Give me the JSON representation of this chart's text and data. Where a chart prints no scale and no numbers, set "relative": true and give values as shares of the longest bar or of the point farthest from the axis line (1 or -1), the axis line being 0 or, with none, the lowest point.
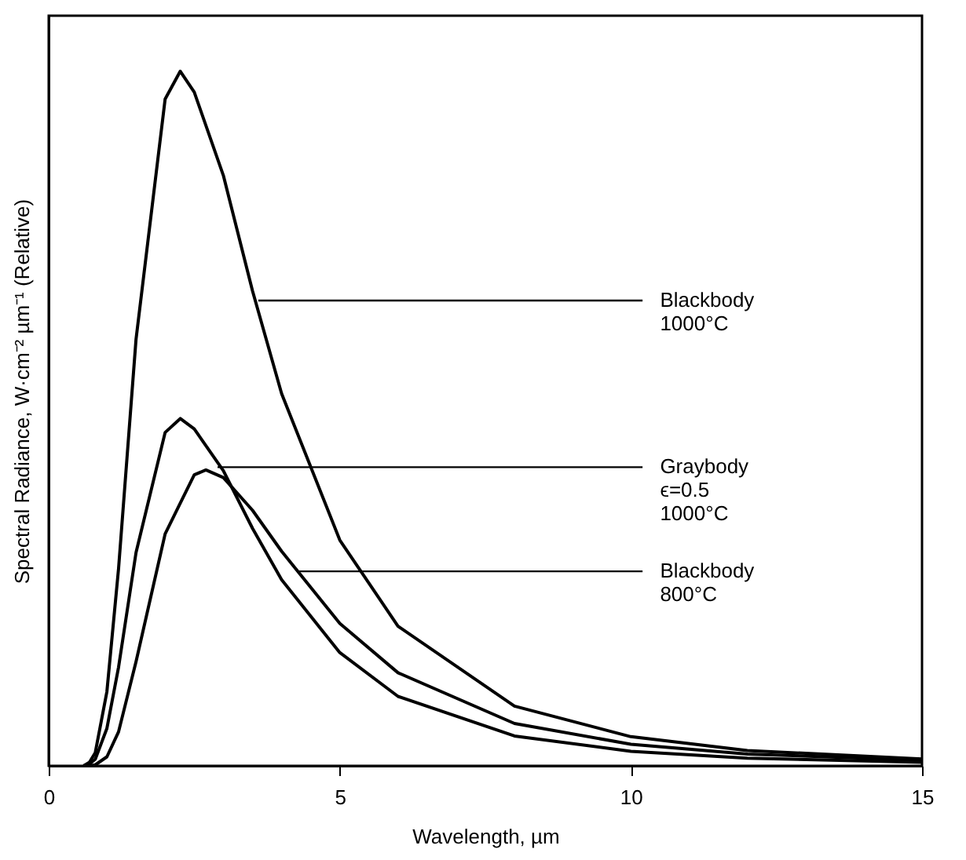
{
  "chart_data": {
    "type": "line",
    "relative": true,
    "xlabel": "Wavelength, µm",
    "ylabel": "Spectral Radiance, W·cm⁻² µm⁻¹ (Relative)",
    "xlim": [
      0,
      15
    ],
    "xticks": [
      0,
      5,
      10,
      15
    ],
    "legend": false,
    "grid": false,
    "series": [
      {
        "color": "#000000",
        "x": [
          0.6,
          0.7,
          0.8,
          1,
          1.2,
          1.5,
          2,
          2.26,
          2.5,
          3,
          3.5,
          4,
          5,
          6,
          8,
          10,
          12,
          15
        ],
        "values": [
          0,
          0.005,
          0.019,
          0.107,
          0.284,
          0.614,
          0.96,
          1,
          0.97,
          0.85,
          0.684,
          0.536,
          0.325,
          0.201,
          0.086,
          0.042,
          0.022,
          0.01
        ]
      },
      {
        "color": "#000000",
        "x": [
          0.6,
          0.7,
          0.8,
          1,
          1.2,
          1.5,
          2,
          2.26,
          2.5,
          3,
          3.5,
          4,
          5,
          6,
          8,
          10,
          12,
          15
        ],
        "values": [
          0,
          0.0025,
          0.0095,
          0.054,
          0.142,
          0.307,
          0.48,
          0.5,
          0.485,
          0.425,
          0.342,
          0.268,
          0.163,
          0.1,
          0.043,
          0.021,
          0.011,
          0.005
        ]
      },
      {
        "color": "#000000",
        "x": [
          0.7,
          0.8,
          1,
          1.2,
          1.5,
          2,
          2.5,
          2.7,
          3,
          3.5,
          4,
          5,
          6,
          8,
          10,
          12,
          15
        ],
        "values": [
          0,
          0.0014,
          0.013,
          0.049,
          0.15,
          0.334,
          0.419,
          0.426,
          0.415,
          0.368,
          0.309,
          0.205,
          0.134,
          0.061,
          0.031,
          0.017,
          0.008
        ]
      }
    ],
    "annotations": [
      {
        "text": "Blackbody\n1000°C",
        "x": 3.6,
        "y": 0.67
      },
      {
        "text": "Graybody\nϵ=0.5\n1000°C",
        "x": 2.9,
        "y": 0.43
      },
      {
        "text": "Blackbody\n800°C",
        "x": 4.3,
        "y": 0.28
      }
    ]
  }
}
